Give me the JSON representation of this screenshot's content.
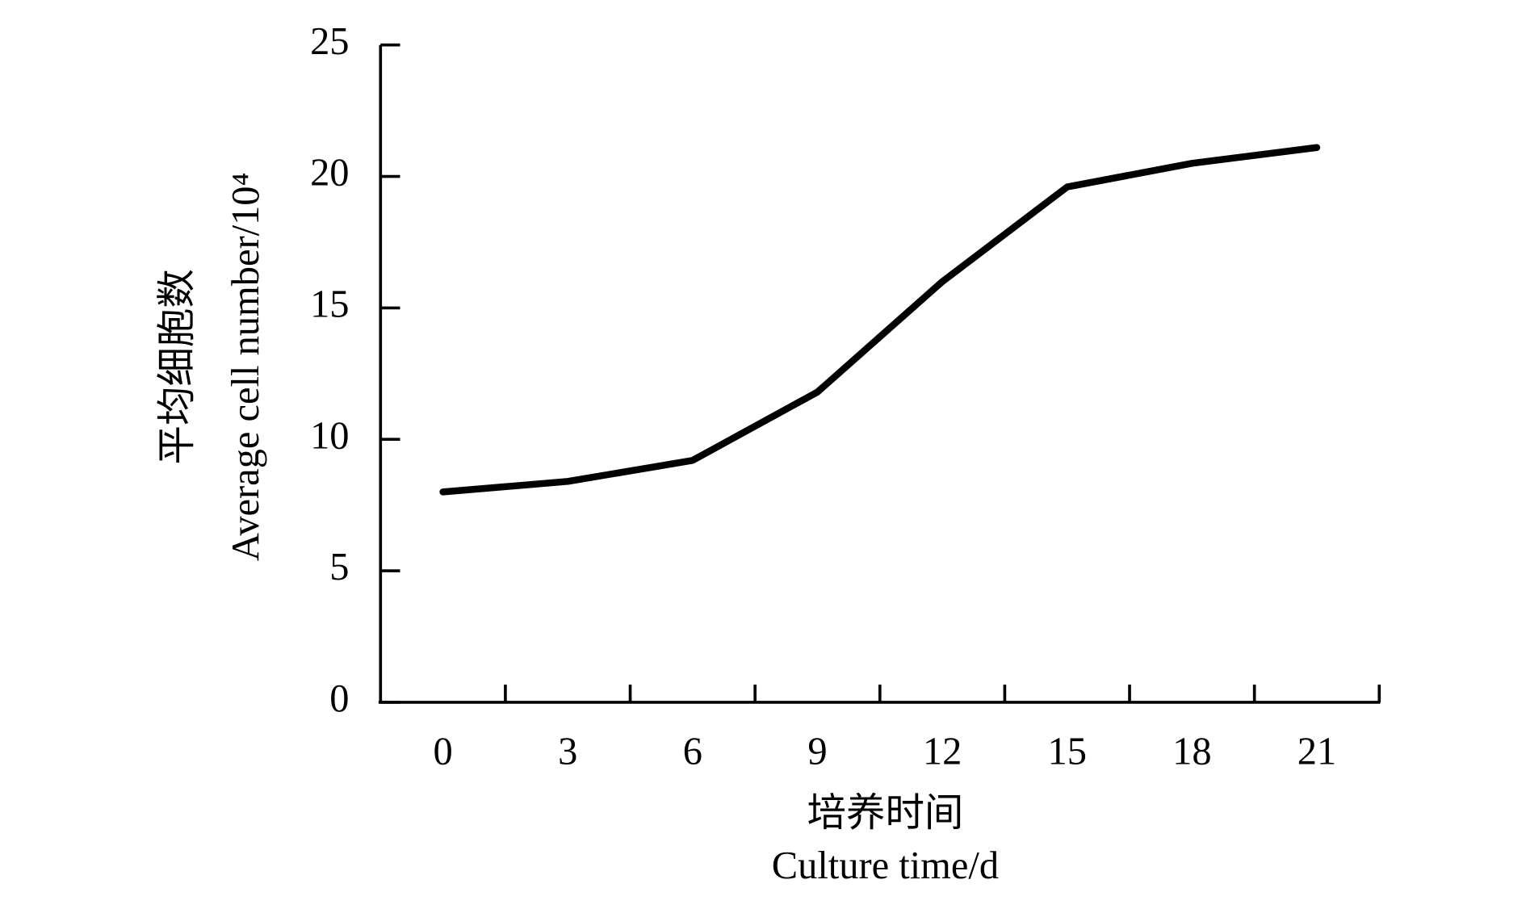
{
  "chart_data": {
    "type": "line",
    "y_title_lines": [
      "平均细胞数",
      "Average cell number/10⁴"
    ],
    "x_title_lines": [
      "培养时间",
      "Culture time/d"
    ],
    "categories": [
      "0",
      "3",
      "6",
      "9",
      "12",
      "15",
      "18",
      "21"
    ],
    "values": [
      8.0,
      8.4,
      9.2,
      11.8,
      16.0,
      19.6,
      20.5,
      21.1
    ],
    "color": "#000000",
    "ylim": [
      0,
      25
    ],
    "yticks": [
      0,
      5,
      10,
      15,
      20,
      25
    ],
    "grid": false
  }
}
